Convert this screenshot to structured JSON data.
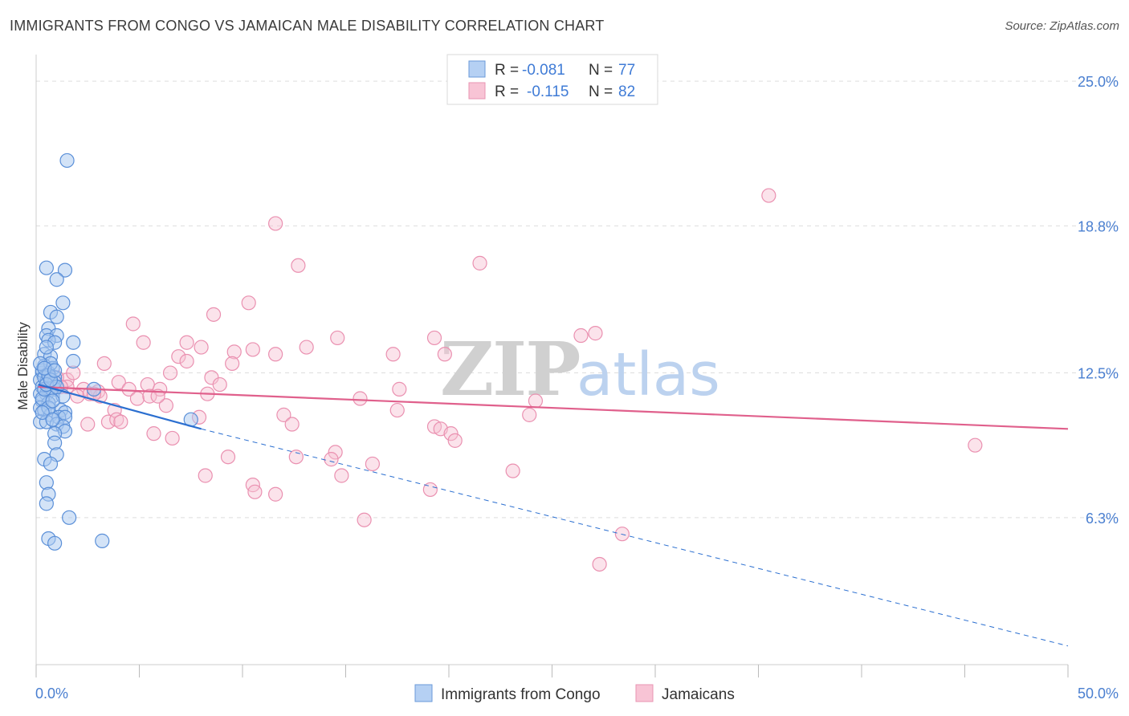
{
  "title": "IMMIGRANTS FROM CONGO VS JAMAICAN MALE DISABILITY CORRELATION CHART",
  "source": "Source: ZipAtlas.com",
  "watermark": {
    "zip": "ZIP",
    "atlas": "atlas"
  },
  "legend": {
    "r_label": "R =",
    "n_label": "N =",
    "congo": {
      "r": "-0.081",
      "n": "77"
    },
    "jamaican": {
      "r": "-0.115",
      "n": "82"
    }
  },
  "colors": {
    "congo_fill": "#a8c8f0",
    "congo_stroke": "#5a8fd8",
    "congo_line": "#2b6fd0",
    "jamaican_fill": "#f7c0d2",
    "jamaican_stroke": "#ea90b0",
    "jamaican_line": "#e0608c",
    "axis_label": "#4a7fd0",
    "grid": "#dddddd"
  },
  "chart_data": {
    "type": "scatter",
    "title": "IMMIGRANTS FROM CONGO VS JAMAICAN MALE DISABILITY CORRELATION CHART",
    "xlabel": "",
    "ylabel": "Male Disability",
    "xlim": [
      0,
      50
    ],
    "ylim": [
      0,
      26
    ],
    "x_tick_labels": [
      "0.0%",
      "50.0%"
    ],
    "y_ticks": [
      6.3,
      12.5,
      18.8,
      25.0
    ],
    "y_tick_labels": [
      "6.3%",
      "12.5%",
      "18.8%",
      "25.0%"
    ],
    "grid": true,
    "legend_position": "top-center",
    "series": [
      {
        "name": "Immigrants from Congo",
        "trend": {
          "x0": 0.1,
          "y0": 12.0,
          "x1": 8.0,
          "y1": 10.1,
          "dashed_to_x": 50,
          "dashed_to_y": 0.8
        },
        "points": [
          [
            1.5,
            21.6
          ],
          [
            0.5,
            17.0
          ],
          [
            1.4,
            16.9
          ],
          [
            1.0,
            16.5
          ],
          [
            0.7,
            15.1
          ],
          [
            1.3,
            15.5
          ],
          [
            1.0,
            14.9
          ],
          [
            0.6,
            14.4
          ],
          [
            0.5,
            14.1
          ],
          [
            1.0,
            14.1
          ],
          [
            0.6,
            13.9
          ],
          [
            0.9,
            13.8
          ],
          [
            1.8,
            13.8
          ],
          [
            0.4,
            13.3
          ],
          [
            0.7,
            13.2
          ],
          [
            1.8,
            13.0
          ],
          [
            0.4,
            12.8
          ],
          [
            0.8,
            12.7
          ],
          [
            0.3,
            12.5
          ],
          [
            0.6,
            12.5
          ],
          [
            0.9,
            12.3
          ],
          [
            0.2,
            12.2
          ],
          [
            0.5,
            12.1
          ],
          [
            0.8,
            12.0
          ],
          [
            0.3,
            11.9
          ],
          [
            0.6,
            11.8
          ],
          [
            0.9,
            11.8
          ],
          [
            0.2,
            11.6
          ],
          [
            0.5,
            11.6
          ],
          [
            0.8,
            11.5
          ],
          [
            1.3,
            11.5
          ],
          [
            0.3,
            11.3
          ],
          [
            0.6,
            11.2
          ],
          [
            0.2,
            11.0
          ],
          [
            0.4,
            10.9
          ],
          [
            1.2,
            10.9
          ],
          [
            1.4,
            10.8
          ],
          [
            0.7,
            10.7
          ],
          [
            1.1,
            10.6
          ],
          [
            1.4,
            10.6
          ],
          [
            0.2,
            10.4
          ],
          [
            0.5,
            10.4
          ],
          [
            1.0,
            10.3
          ],
          [
            1.3,
            10.2
          ],
          [
            1.4,
            10.0
          ],
          [
            0.9,
            9.9
          ],
          [
            0.9,
            9.5
          ],
          [
            1.0,
            9.0
          ],
          [
            0.4,
            8.8
          ],
          [
            0.7,
            8.6
          ],
          [
            0.5,
            7.8
          ],
          [
            0.6,
            7.3
          ],
          [
            0.5,
            6.9
          ],
          [
            1.6,
            6.3
          ],
          [
            0.6,
            5.4
          ],
          [
            0.9,
            5.2
          ],
          [
            3.2,
            5.3
          ],
          [
            2.8,
            11.8
          ],
          [
            7.5,
            10.5
          ],
          [
            0.3,
            12.6
          ],
          [
            0.4,
            12.3
          ],
          [
            0.7,
            12.9
          ],
          [
            0.3,
            11.4
          ],
          [
            0.6,
            11.0
          ],
          [
            0.9,
            12.1
          ],
          [
            0.2,
            12.9
          ],
          [
            0.5,
            13.6
          ],
          [
            0.8,
            11.3
          ],
          [
            0.4,
            11.8
          ],
          [
            0.6,
            12.4
          ],
          [
            0.3,
            10.8
          ],
          [
            0.8,
            10.5
          ],
          [
            0.5,
            12.0
          ],
          [
            1.0,
            11.9
          ],
          [
            0.7,
            12.2
          ],
          [
            0.4,
            12.7
          ],
          [
            0.9,
            12.6
          ]
        ]
      },
      {
        "name": "Jamaicans",
        "trend": {
          "x0": 0.1,
          "y0": 11.9,
          "x1": 50,
          "y1": 10.1
        },
        "points": [
          [
            35.5,
            20.1
          ],
          [
            11.6,
            18.9
          ],
          [
            12.7,
            17.1
          ],
          [
            21.5,
            17.2
          ],
          [
            10.3,
            15.5
          ],
          [
            8.6,
            15.0
          ],
          [
            4.7,
            14.6
          ],
          [
            14.6,
            14.0
          ],
          [
            19.3,
            14.0
          ],
          [
            26.4,
            14.1
          ],
          [
            5.2,
            13.8
          ],
          [
            7.3,
            13.8
          ],
          [
            8.0,
            13.6
          ],
          [
            13.1,
            13.6
          ],
          [
            9.6,
            13.4
          ],
          [
            10.5,
            13.5
          ],
          [
            11.6,
            13.3
          ],
          [
            17.3,
            13.3
          ],
          [
            19.8,
            13.3
          ],
          [
            6.9,
            13.2
          ],
          [
            7.3,
            13.0
          ],
          [
            3.3,
            12.9
          ],
          [
            9.5,
            12.9
          ],
          [
            6.5,
            12.5
          ],
          [
            8.5,
            12.3
          ],
          [
            1.5,
            12.2
          ],
          [
            4.0,
            12.1
          ],
          [
            5.4,
            12.0
          ],
          [
            8.9,
            12.0
          ],
          [
            1.5,
            11.9
          ],
          [
            2.3,
            11.8
          ],
          [
            3.0,
            11.7
          ],
          [
            4.5,
            11.8
          ],
          [
            6.0,
            11.8
          ],
          [
            8.3,
            11.6
          ],
          [
            2.0,
            11.5
          ],
          [
            2.6,
            11.6
          ],
          [
            3.1,
            11.5
          ],
          [
            4.9,
            11.4
          ],
          [
            5.5,
            11.5
          ],
          [
            15.7,
            11.4
          ],
          [
            17.6,
            11.8
          ],
          [
            24.2,
            11.3
          ],
          [
            6.3,
            11.1
          ],
          [
            3.8,
            10.9
          ],
          [
            17.5,
            10.9
          ],
          [
            12.0,
            10.7
          ],
          [
            23.9,
            10.7
          ],
          [
            3.5,
            10.4
          ],
          [
            3.9,
            10.5
          ],
          [
            4.1,
            10.4
          ],
          [
            7.9,
            10.6
          ],
          [
            12.4,
            10.3
          ],
          [
            2.5,
            10.3
          ],
          [
            19.3,
            10.2
          ],
          [
            19.6,
            10.1
          ],
          [
            20.1,
            9.9
          ],
          [
            5.7,
            9.9
          ],
          [
            6.6,
            9.7
          ],
          [
            20.3,
            9.6
          ],
          [
            45.5,
            9.4
          ],
          [
            14.5,
            9.1
          ],
          [
            9.3,
            8.9
          ],
          [
            12.6,
            8.9
          ],
          [
            14.3,
            8.8
          ],
          [
            16.3,
            8.6
          ],
          [
            23.1,
            8.3
          ],
          [
            8.2,
            8.1
          ],
          [
            14.8,
            8.1
          ],
          [
            10.5,
            7.7
          ],
          [
            10.6,
            7.4
          ],
          [
            11.6,
            7.3
          ],
          [
            19.1,
            7.5
          ],
          [
            15.9,
            6.2
          ],
          [
            28.4,
            5.6
          ],
          [
            27.3,
            4.3
          ],
          [
            1.8,
            12.5
          ],
          [
            1.0,
            12.3
          ],
          [
            2.8,
            11.6
          ],
          [
            1.2,
            11.9
          ],
          [
            27.1,
            14.2
          ],
          [
            5.9,
            11.5
          ]
        ]
      }
    ]
  }
}
